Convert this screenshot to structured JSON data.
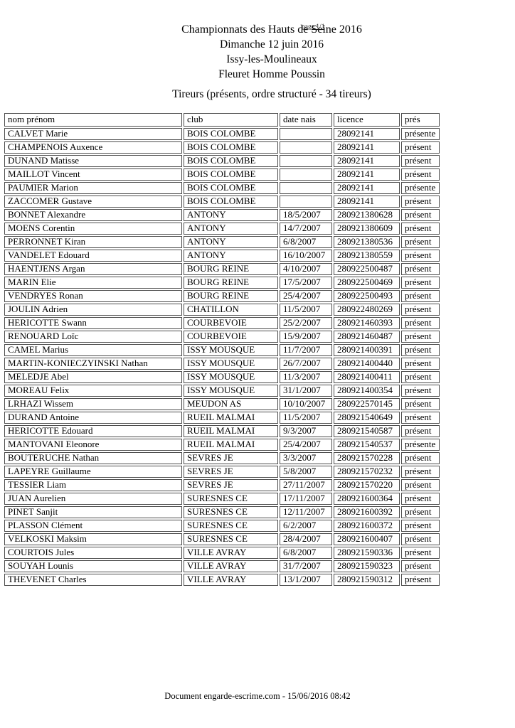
{
  "document": {
    "title": "Championnats des Hauts de Seine 2016",
    "page_indicator": "page 1/1",
    "date_line": "Dimanche 12 juin 2016",
    "location_line": "Issy-les-Moulineaux",
    "event_line": "Fleuret Homme Poussin",
    "section_heading": "Tireurs (présents, ordre structuré - 34 tireurs)",
    "footer": "Document engarde-escrime.com - 15/06/2016 08:42"
  },
  "colors": {
    "background": "#ffffff",
    "text": "#000000",
    "table_border": "#4d4d4d"
  },
  "table": {
    "headers": [
      "nom prénom",
      "club",
      "date nais",
      "licence",
      "prés"
    ],
    "rows": [
      {
        "name": "CALVET Marie",
        "club": "BOIS COLOMBE",
        "birth_date": "",
        "licence": "28092141",
        "presence": "présente"
      },
      {
        "name": "CHAMPENOIS Auxence",
        "club": "BOIS COLOMBE",
        "birth_date": "",
        "licence": "28092141",
        "presence": "présent"
      },
      {
        "name": "DUNAND Matisse",
        "club": "BOIS COLOMBE",
        "birth_date": "",
        "licence": "28092141",
        "presence": "présent"
      },
      {
        "name": "MAILLOT Vincent",
        "club": "BOIS COLOMBE",
        "birth_date": "",
        "licence": "28092141",
        "presence": "présent"
      },
      {
        "name": "PAUMIER Marion",
        "club": "BOIS COLOMBE",
        "birth_date": "",
        "licence": "28092141",
        "presence": "présente"
      },
      {
        "name": "ZACCOMER Gustave",
        "club": "BOIS COLOMBE",
        "birth_date": "",
        "licence": "28092141",
        "presence": "présent"
      },
      {
        "name": "BONNET Alexandre",
        "club": "ANTONY",
        "birth_date": "18/5/2007",
        "licence": "280921380628",
        "presence": "présent"
      },
      {
        "name": "MOENS Corentin",
        "club": "ANTONY",
        "birth_date": "14/7/2007",
        "licence": "280921380609",
        "presence": "présent"
      },
      {
        "name": "PERRONNET Kiran",
        "club": "ANTONY",
        "birth_date": "6/8/2007",
        "licence": "280921380536",
        "presence": "présent"
      },
      {
        "name": "VANDELET Edouard",
        "club": "ANTONY",
        "birth_date": "16/10/2007",
        "licence": "280921380559",
        "presence": "présent"
      },
      {
        "name": "HAENTJENS Argan",
        "club": "BOURG REINE",
        "birth_date": "4/10/2007",
        "licence": "280922500487",
        "presence": "présent"
      },
      {
        "name": "MARIN Elie",
        "club": "BOURG REINE",
        "birth_date": "17/5/2007",
        "licence": "280922500469",
        "presence": "présent"
      },
      {
        "name": "VENDRYES Ronan",
        "club": "BOURG REINE",
        "birth_date": "25/4/2007",
        "licence": "280922500493",
        "presence": "présent"
      },
      {
        "name": "JOULIN Adrien",
        "club": "CHATILLON",
        "birth_date": "11/5/2007",
        "licence": "280922480269",
        "presence": "présent"
      },
      {
        "name": "HERICOTTE Swann",
        "club": "COURBEVOIE",
        "birth_date": "25/2/2007",
        "licence": "280921460393",
        "presence": "présent"
      },
      {
        "name": "RENOUARD Loïc",
        "club": "COURBEVOIE",
        "birth_date": "15/9/2007",
        "licence": "280921460487",
        "presence": "présent"
      },
      {
        "name": "CAMEL Marius",
        "club": "ISSY MOUSQUE",
        "birth_date": "11/7/2007",
        "licence": "280921400391",
        "presence": "présent"
      },
      {
        "name": "MARTIN-KONIECZYINSKI Nathan",
        "club": "ISSY MOUSQUE",
        "birth_date": "26/7/2007",
        "licence": "280921400440",
        "presence": "présent"
      },
      {
        "name": "MELEDJE Abel",
        "club": "ISSY MOUSQUE",
        "birth_date": "11/3/2007",
        "licence": "280921400411",
        "presence": "présent"
      },
      {
        "name": "MOREAU Felix",
        "club": "ISSY MOUSQUE",
        "birth_date": "31/1/2007",
        "licence": "280921400354",
        "presence": "présent"
      },
      {
        "name": "LRHAZI Wissem",
        "club": "MEUDON AS",
        "birth_date": "10/10/2007",
        "licence": "280922570145",
        "presence": "présent"
      },
      {
        "name": "DURAND Antoine",
        "club": "RUEIL MALMAI",
        "birth_date": "11/5/2007",
        "licence": "280921540649",
        "presence": "présent"
      },
      {
        "name": "HERICOTTE Edouard",
        "club": "RUEIL MALMAI",
        "birth_date": "9/3/2007",
        "licence": "280921540587",
        "presence": "présent"
      },
      {
        "name": "MANTOVANI Eleonore",
        "club": "RUEIL MALMAI",
        "birth_date": "25/4/2007",
        "licence": "280921540537",
        "presence": "présente"
      },
      {
        "name": "BOUTERUCHE Nathan",
        "club": "SEVRES JE",
        "birth_date": "3/3/2007",
        "licence": "280921570228",
        "presence": "présent"
      },
      {
        "name": "LAPEYRE Guillaume",
        "club": "SEVRES JE",
        "birth_date": "5/8/2007",
        "licence": "280921570232",
        "presence": "présent"
      },
      {
        "name": "TESSIER Liam",
        "club": "SEVRES JE",
        "birth_date": "27/11/2007",
        "licence": "280921570220",
        "presence": "présent"
      },
      {
        "name": "JUAN Aurelien",
        "club": "SURESNES CE",
        "birth_date": "17/11/2007",
        "licence": "280921600364",
        "presence": "présent"
      },
      {
        "name": "PINET Sanjit",
        "club": "SURESNES CE",
        "birth_date": "12/11/2007",
        "licence": "280921600392",
        "presence": "présent"
      },
      {
        "name": "PLASSON Clément",
        "club": "SURESNES CE",
        "birth_date": "6/2/2007",
        "licence": "280921600372",
        "presence": "présent"
      },
      {
        "name": "VELKOSKI Maksim",
        "club": "SURESNES CE",
        "birth_date": "28/4/2007",
        "licence": "280921600407",
        "presence": "présent"
      },
      {
        "name": "COURTOIS Jules",
        "club": "VILLE AVRAY",
        "birth_date": "6/8/2007",
        "licence": "280921590336",
        "presence": "présent"
      },
      {
        "name": "SOUYAH Lounis",
        "club": "VILLE AVRAY",
        "birth_date": "31/7/2007",
        "licence": "280921590323",
        "presence": "présent"
      },
      {
        "name": "THEVENET Charles",
        "club": "VILLE AVRAY",
        "birth_date": "13/1/2007",
        "licence": "280921590312",
        "presence": "présent"
      }
    ]
  }
}
